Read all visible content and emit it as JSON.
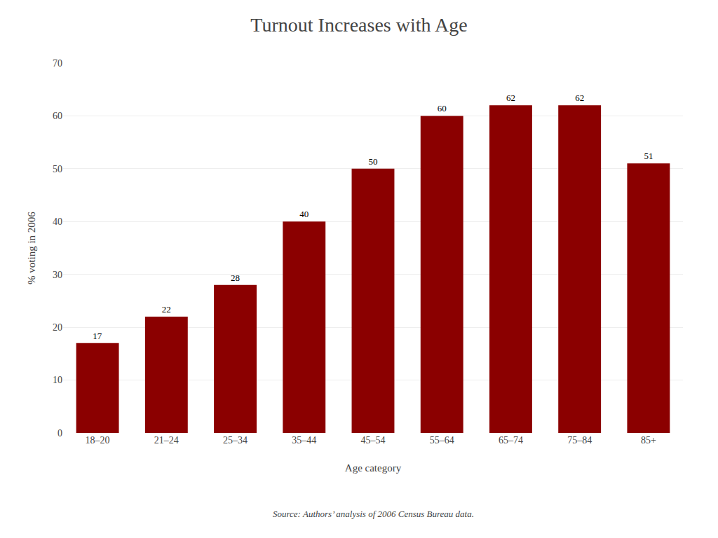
{
  "chart_data": {
    "type": "bar",
    "title": "Turnout Increases with Age",
    "xlabel": "Age category",
    "ylabel": "% voting in 2006",
    "categories": [
      "18–20",
      "21–24",
      "25–34",
      "35–44",
      "45–54",
      "55–64",
      "65–74",
      "75–84",
      "85+"
    ],
    "values": [
      17,
      22,
      28,
      40,
      50,
      60,
      62,
      62,
      51
    ],
    "color": "#8B0000",
    "ylim": [
      0,
      70
    ],
    "yticks": [
      0,
      10,
      20,
      30,
      40,
      50,
      60,
      70
    ],
    "grid": true,
    "data_labels": true,
    "annotations": [
      "Source: Authors’ analysis of 2006 Census Bureau data."
    ]
  }
}
